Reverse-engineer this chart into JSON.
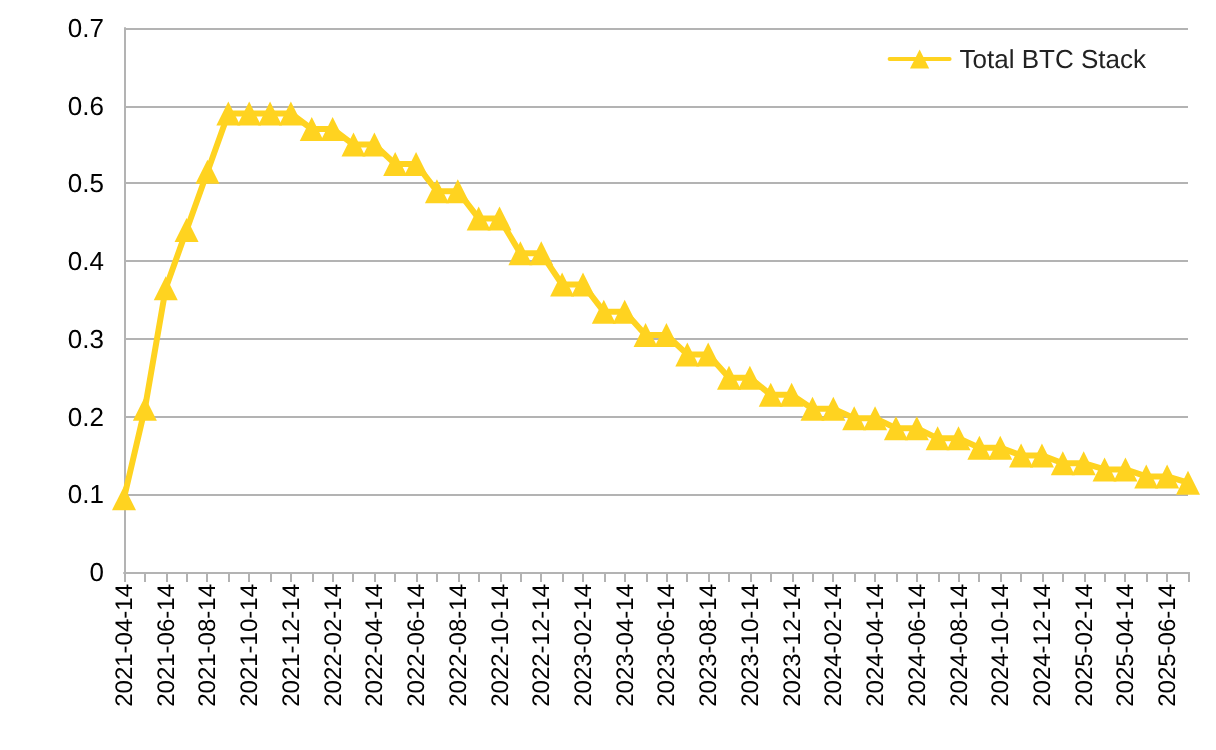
{
  "chart_data": {
    "type": "line",
    "categories": [
      "2021-04-14",
      null,
      "2021-06-14",
      null,
      "2021-08-14",
      null,
      "2021-10-14",
      null,
      "2021-12-14",
      null,
      "2022-02-14",
      null,
      "2022-04-14",
      null,
      "2022-06-14",
      null,
      "2022-08-14",
      null,
      "2022-10-14",
      null,
      "2022-12-14",
      null,
      "2023-02-14",
      null,
      "2023-04-14",
      null,
      "2023-06-14",
      null,
      "2023-08-14",
      null,
      "2023-10-14",
      null,
      "2023-12-14",
      null,
      "2024-02-14",
      null,
      "2024-04-14",
      null,
      "2024-06-14",
      null,
      "2024-08-14",
      null,
      "2024-10-14",
      null,
      "2024-12-14",
      null,
      "2025-02-14",
      null,
      "2025-04-14",
      null,
      "2025-06-14",
      null
    ],
    "series": [
      {
        "name": "Total BTC Stack",
        "color": "#ffd320",
        "values": [
          0.095,
          0.21,
          0.365,
          0.44,
          0.515,
          0.59,
          0.59,
          0.59,
          0.59,
          0.57,
          0.57,
          0.55,
          0.55,
          0.525,
          0.525,
          0.49,
          0.49,
          0.455,
          0.455,
          0.41,
          0.41,
          0.37,
          0.37,
          0.335,
          0.335,
          0.305,
          0.305,
          0.28,
          0.28,
          0.25,
          0.25,
          0.228,
          0.228,
          0.21,
          0.21,
          0.198,
          0.198,
          0.185,
          0.185,
          0.172,
          0.172,
          0.16,
          0.16,
          0.15,
          0.15,
          0.14,
          0.14,
          0.132,
          0.132,
          0.123,
          0.123,
          0.115
        ]
      }
    ],
    "ylim": [
      0,
      0.7
    ],
    "yticks": [
      0,
      0.1,
      0.2,
      0.3,
      0.4,
      0.5,
      0.6,
      0.7
    ],
    "grid": "y",
    "legend": "top right",
    "marker": "triangle",
    "line_style": "solid"
  }
}
